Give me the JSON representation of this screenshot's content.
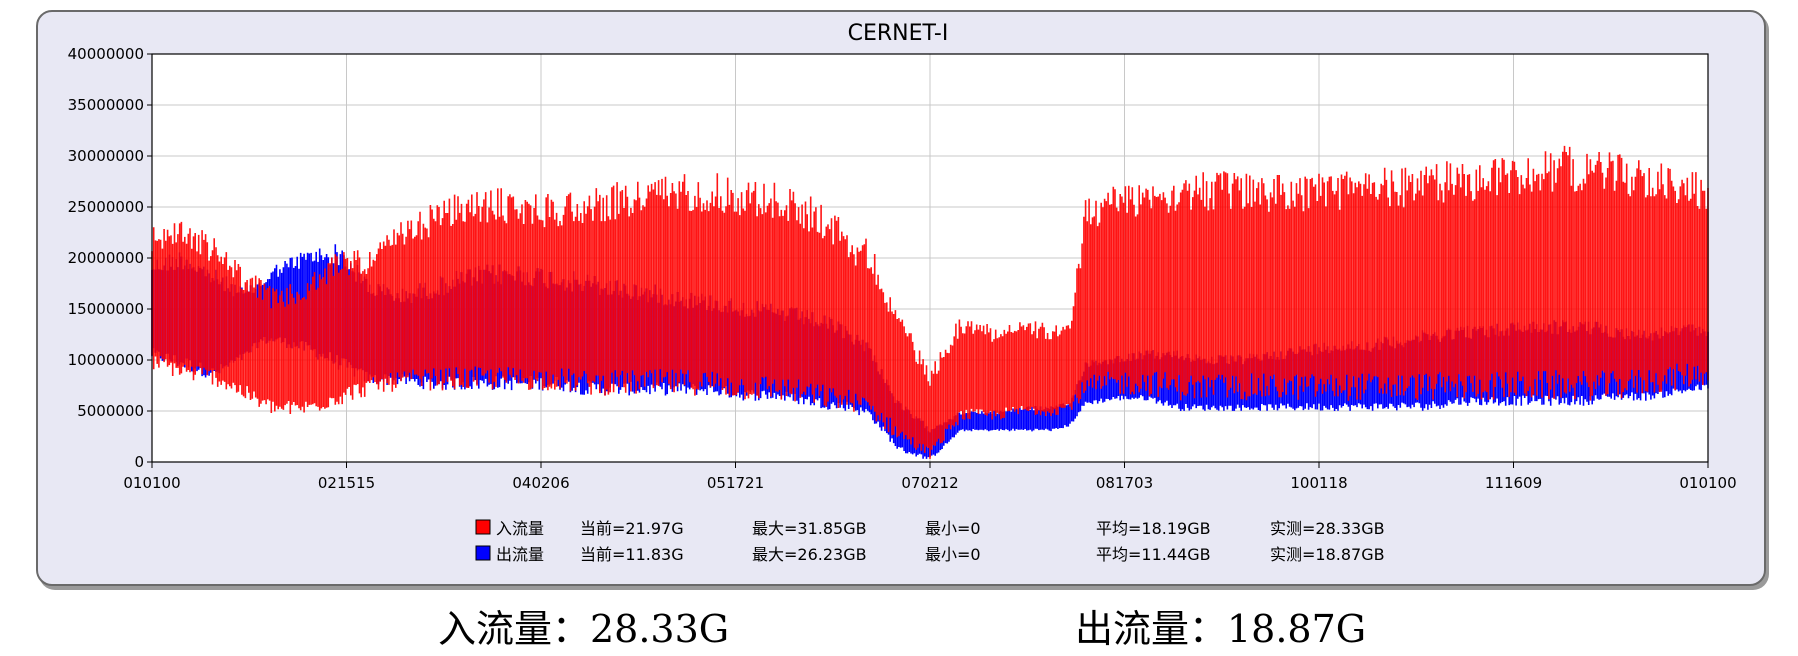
{
  "chart_data": {
    "type": "line",
    "title": "CERNET-I",
    "xlabel": "",
    "ylabel": "",
    "ylim": [
      0,
      40000000
    ],
    "y_ticks": [
      "0",
      "5000000",
      "10000000",
      "15000000",
      "20000000",
      "25000000",
      "30000000",
      "35000000",
      "40000000"
    ],
    "x_ticks": [
      "010100",
      "021515",
      "040206",
      "051721",
      "070212",
      "081703",
      "100118",
      "111609",
      "010100"
    ],
    "grid": true,
    "legend_position": "bottom",
    "series": [
      {
        "name": "入流量",
        "color": "#ff0000",
        "stats": {
          "current": "当前=21.97G",
          "max": "最大=31.85GB",
          "min": "最小=0",
          "avg": "平均=18.19GB",
          "measured": "实测=28.33GB"
        },
        "x": [
          0,
          2,
          4,
          6,
          7,
          8,
          10,
          12,
          14,
          16,
          18,
          20,
          22,
          24,
          26,
          28,
          30,
          32,
          34,
          36,
          38,
          40,
          42,
          44,
          45,
          45.5,
          46,
          48,
          50,
          52,
          54,
          56,
          58,
          59,
          60,
          62,
          64,
          66,
          68,
          70,
          72,
          74,
          76,
          78,
          80,
          82,
          84,
          86,
          88,
          90,
          92,
          94,
          96,
          98,
          100
        ],
        "high": [
          23000000,
          24000000,
          22000000,
          19000000,
          18000000,
          17000000,
          18000000,
          21000000,
          21000000,
          23500000,
          25500000,
          26500000,
          27000000,
          26500000,
          26500000,
          27000000,
          27500000,
          28000000,
          28500000,
          28500000,
          28000000,
          27500000,
          26500000,
          24500000,
          22500000,
          22000000,
          22000000,
          15000000,
          9000000,
          14500000,
          13500000,
          14000000,
          13500000,
          13500000,
          26000000,
          27500000,
          28000000,
          28500000,
          28500000,
          28500000,
          28500000,
          28500000,
          28500000,
          29000000,
          29000000,
          29500000,
          29500000,
          30000000,
          30500000,
          31000000,
          31000000,
          30500000,
          30000000,
          29000000,
          28500000
        ],
        "low": [
          9000000,
          8000000,
          7500000,
          6000000,
          5000000,
          4500000,
          4500000,
          5500000,
          6500000,
          7000000,
          7000000,
          7000000,
          7000000,
          7000000,
          7000000,
          6500000,
          6500000,
          6500000,
          6500000,
          6500000,
          6000000,
          6000000,
          5500000,
          5000000,
          5000000,
          4500000,
          4500000,
          2000000,
          300000,
          4000000,
          4000000,
          4500000,
          4500000,
          5000000,
          6000000,
          6500000,
          6500000,
          6000000,
          6000000,
          6000000,
          6000000,
          6000000,
          6000000,
          6000000,
          6000000,
          6000000,
          6000000,
          6000000,
          6000000,
          6000000,
          6000000,
          6000000,
          6500000,
          7000000,
          7500000
        ]
      },
      {
        "name": "出流量",
        "color": "#0000ff",
        "stats": {
          "current": "当前=11.83G",
          "max": "最大=26.23GB",
          "min": "最小=0",
          "avg": "平均=11.44GB",
          "measured": "实测=18.87GB"
        },
        "x": [
          0,
          2,
          4,
          6,
          7,
          8,
          10,
          12,
          14,
          16,
          18,
          20,
          22,
          24,
          26,
          28,
          30,
          32,
          34,
          36,
          38,
          40,
          42,
          44,
          45,
          45.5,
          46,
          48,
          50,
          52,
          54,
          56,
          58,
          59,
          60,
          62,
          64,
          66,
          68,
          70,
          72,
          74,
          76,
          78,
          80,
          82,
          84,
          86,
          88,
          90,
          92,
          94,
          96,
          98,
          100
        ],
        "high": [
          20000000,
          21000000,
          19000000,
          17000000,
          18000000,
          19500000,
          21000000,
          21500000,
          18000000,
          17000000,
          18000000,
          19000000,
          19500000,
          19500000,
          19000000,
          18500000,
          18000000,
          17500000,
          17000000,
          16500000,
          16000000,
          15500000,
          15000000,
          14000000,
          13000000,
          12500000,
          12000000,
          6000000,
          3500000,
          5000000,
          5000000,
          5500000,
          5500000,
          6000000,
          10000000,
          10500000,
          11000000,
          11000000,
          10500000,
          10500000,
          11000000,
          11500000,
          12000000,
          12000000,
          12500000,
          13000000,
          13500000,
          13500000,
          14000000,
          14000000,
          14000000,
          13500000,
          13000000,
          13500000,
          13500000
        ],
        "low": [
          10000000,
          9000000,
          8000000,
          10000000,
          11500000,
          11500000,
          10500000,
          9000000,
          7500000,
          7500000,
          7000000,
          7000000,
          7000000,
          7000000,
          7000000,
          6500000,
          6500000,
          6500000,
          6500000,
          6500000,
          6000000,
          6000000,
          5500000,
          5000000,
          5000000,
          4500000,
          4500000,
          1000000,
          100000,
          3000000,
          3000000,
          3000000,
          3000000,
          3500000,
          5500000,
          6000000,
          6000000,
          5000000,
          5000000,
          5000000,
          5000000,
          5000000,
          5000000,
          5000000,
          5000000,
          5000000,
          5500000,
          5500000,
          5500000,
          5500000,
          5500000,
          6000000,
          6000000,
          6500000,
          7000000
        ]
      }
    ]
  },
  "captions": {
    "in": "入流量：28.33G",
    "out": "出流量：18.87G"
  }
}
